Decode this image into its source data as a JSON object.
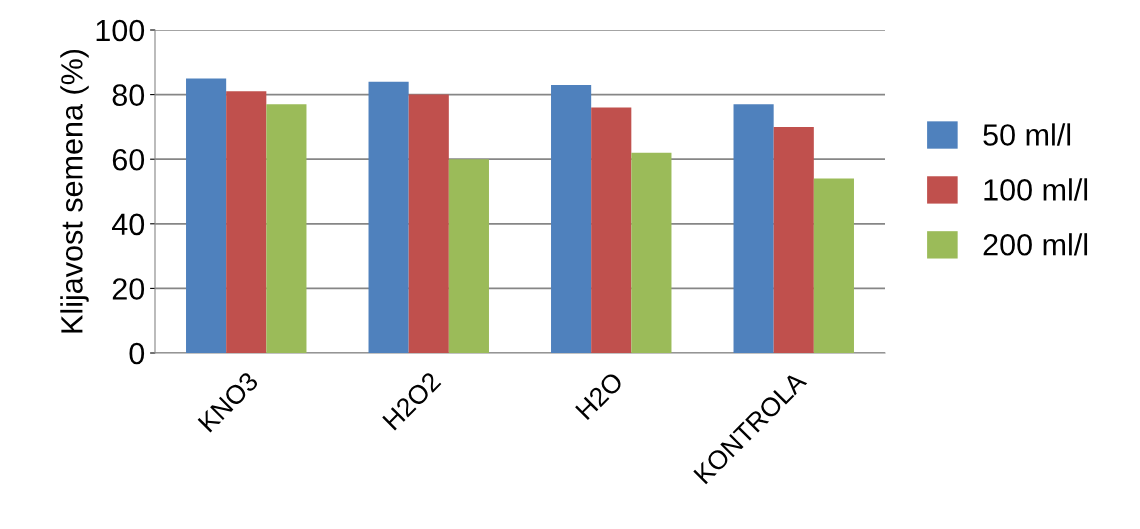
{
  "chart_data": {
    "type": "bar",
    "ylabel": "Klijavost semena (%)",
    "categories": [
      "KNO3",
      "H2O2",
      "H2O",
      "KONTROLA"
    ],
    "series": [
      {
        "name": "50 ml/l",
        "color": "#4f81bd",
        "values": [
          85,
          84,
          83,
          77
        ]
      },
      {
        "name": "100 ml/l",
        "color": "#c0504d",
        "values": [
          81,
          80,
          76,
          70
        ]
      },
      {
        "name": "200 ml/l",
        "color": "#9bbb59",
        "values": [
          77,
          60,
          62,
          54
        ]
      }
    ],
    "ylim": [
      0,
      100
    ],
    "yticks": [
      0,
      20,
      40,
      60,
      80,
      100
    ],
    "grid": "y",
    "legend": "right"
  }
}
